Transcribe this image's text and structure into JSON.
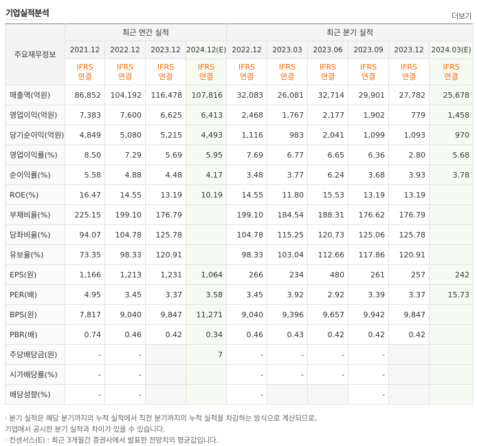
{
  "header": {
    "title": "기업실적분석",
    "more_label": "더보기"
  },
  "table": {
    "row_header": "주요재무정보",
    "groups": {
      "annual": "최근 연간 실적",
      "quarterly": "최근 분기 실적"
    },
    "periods": [
      "2021.12",
      "2022.12",
      "2023.12",
      "2024.12(E)",
      "2022.12",
      "2023.03",
      "2023.06",
      "2023.09",
      "2023.12",
      "2024.03(E)"
    ],
    "ifrs_top": "IFRS",
    "ifrs_bottom": "연결",
    "rows": [
      {
        "label": "매출액(억원)",
        "values": [
          "86,852",
          "104,192",
          "116,478",
          "107,816",
          "32,083",
          "26,081",
          "32,714",
          "29,901",
          "27,782",
          "25,678"
        ]
      },
      {
        "label": "영업이익(억원)",
        "values": [
          "7,383",
          "7,600",
          "6,625",
          "6,413",
          "2,468",
          "1,767",
          "2,177",
          "1,902",
          "779",
          "1,458"
        ]
      },
      {
        "label": "당기순이익(억원)",
        "values": [
          "4,849",
          "5,080",
          "5,215",
          "4,493",
          "1,116",
          "983",
          "2,041",
          "1,099",
          "1,093",
          "970"
        ]
      },
      {
        "label": "영업이익률(%)",
        "values": [
          "8.50",
          "7.29",
          "5.69",
          "5.95",
          "7.69",
          "6.77",
          "6.65",
          "6.36",
          "2.80",
          "5.68"
        ]
      },
      {
        "label": "순이익률(%)",
        "values": [
          "5.58",
          "4.88",
          "4.48",
          "4.17",
          "3.48",
          "3.77",
          "6.24",
          "3.68",
          "3.93",
          "3.78"
        ]
      },
      {
        "label": "ROE(%)",
        "values": [
          "16.47",
          "14.55",
          "13.19",
          "10.19",
          "14.55",
          "11.80",
          "15.53",
          "13.19",
          "13.19",
          ""
        ]
      },
      {
        "label": "부채비율(%)",
        "values": [
          "225.15",
          "199.10",
          "176.79",
          "",
          "199.10",
          "184.54",
          "188.31",
          "176.62",
          "176.79",
          ""
        ]
      },
      {
        "label": "당좌비율(%)",
        "values": [
          "94.07",
          "104.78",
          "125.78",
          "",
          "104.78",
          "115.25",
          "120.73",
          "125.06",
          "125.78",
          ""
        ]
      },
      {
        "label": "유보율(%)",
        "values": [
          "73.35",
          "98.33",
          "120.91",
          "",
          "98.33",
          "103.04",
          "112.66",
          "117.86",
          "120.91",
          ""
        ]
      },
      {
        "label": "EPS(원)",
        "values": [
          "1,166",
          "1,213",
          "1,231",
          "1,064",
          "266",
          "234",
          "480",
          "261",
          "257",
          "242"
        ]
      },
      {
        "label": "PER(배)",
        "values": [
          "4.95",
          "3.45",
          "3.37",
          "3.58",
          "3.45",
          "3.92",
          "2.92",
          "3.39",
          "3.37",
          "15.73"
        ]
      },
      {
        "label": "BPS(원)",
        "values": [
          "7,817",
          "9,040",
          "9,847",
          "11,271",
          "9,040",
          "9,396",
          "9,657",
          "9,942",
          "9,847",
          ""
        ]
      },
      {
        "label": "PBR(배)",
        "values": [
          "0.74",
          "0.46",
          "0.42",
          "0.34",
          "0.46",
          "0.43",
          "0.42",
          "0.42",
          "0.42",
          ""
        ]
      },
      {
        "label": "주당배당금(원)",
        "values": [
          "-",
          "-",
          "",
          "7",
          "-",
          "-",
          "-",
          "-",
          "",
          ""
        ]
      },
      {
        "label": "시가배당률(%)",
        "values": [
          "-",
          "-",
          "",
          "",
          "-",
          "-",
          "-",
          "-",
          "",
          ""
        ]
      },
      {
        "label": "배당성향(%)",
        "values": [
          "-",
          "-",
          "",
          "",
          "-",
          "",
          "",
          "-",
          "",
          ""
        ]
      }
    ]
  },
  "notes": {
    "line1": "· 분기 실적은 해당 분기까지의 누적 실적에서 직전 분기까지의 누적 실적을 차감하는 방식으로 계산되므로,",
    "line2": "  기업에서 공시한 분기 실적과 차이가 있을 수 있습니다.",
    "line3": "· 컨센서스(E) : 최근 3개월간 증권사에서 발표한 전망치의 평균값입니다."
  }
}
